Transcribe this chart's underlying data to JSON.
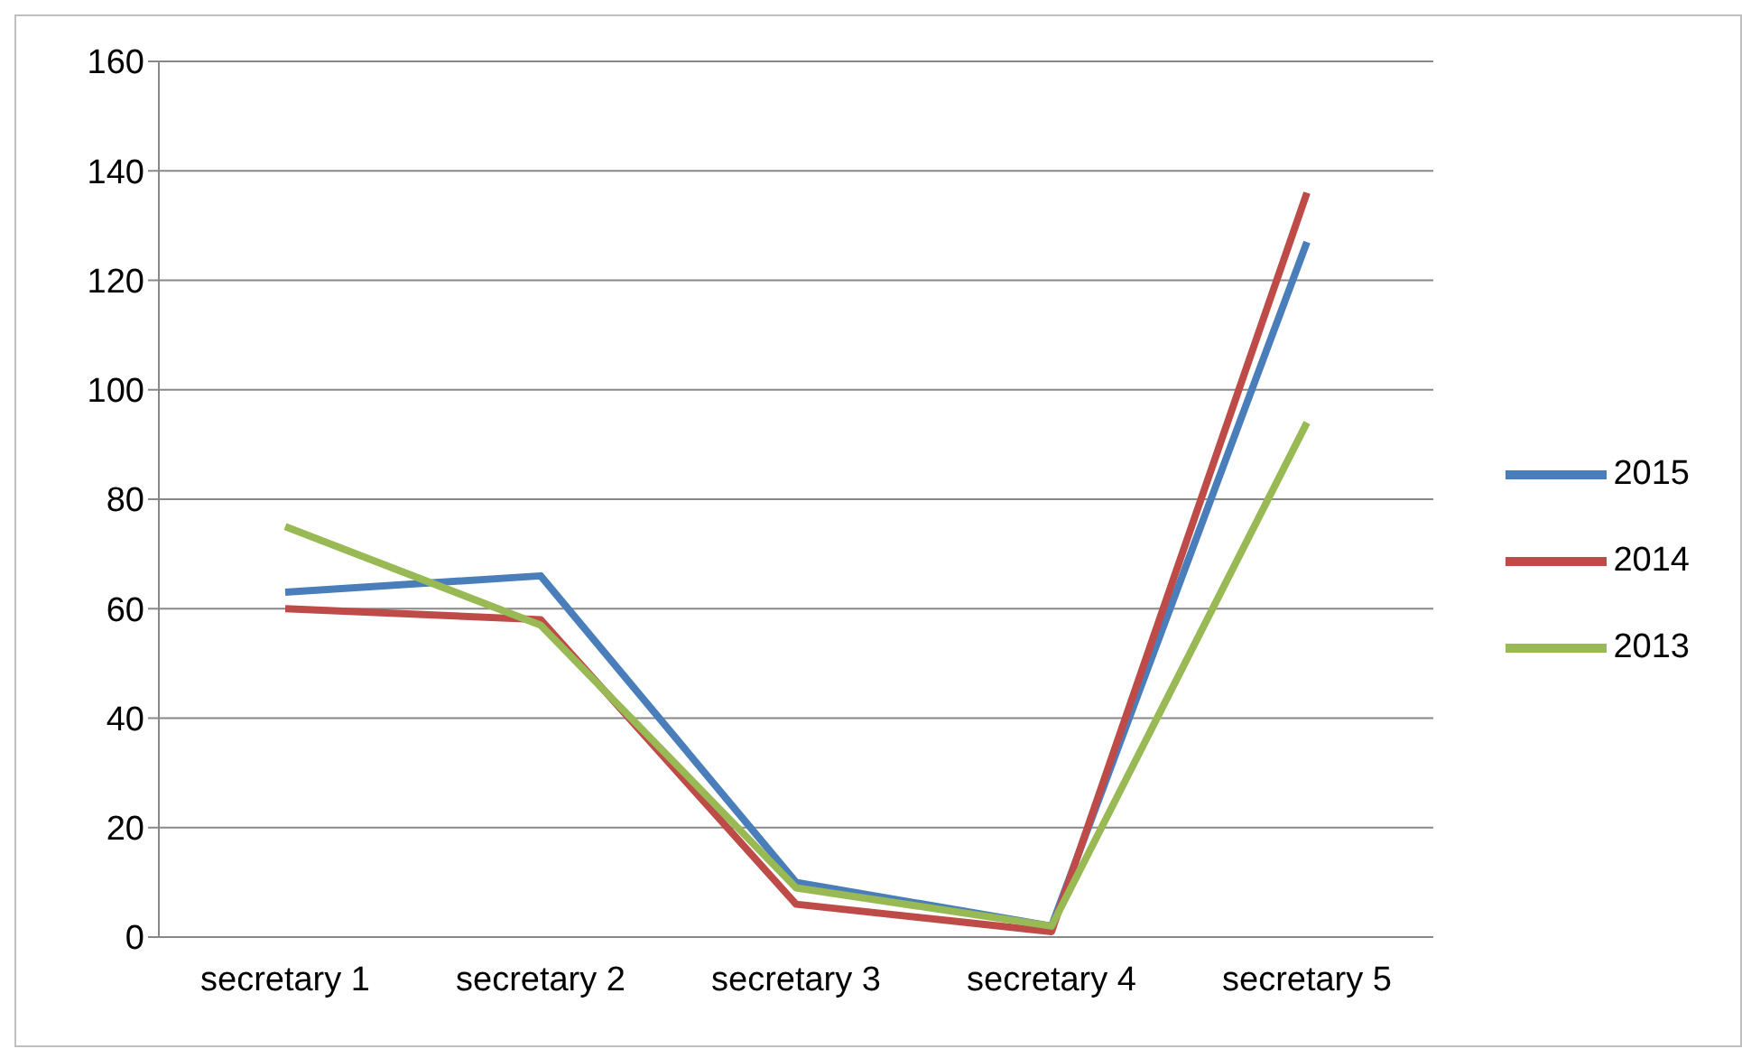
{
  "chart_data": {
    "type": "line",
    "categories": [
      "secretary 1",
      "secretary 2",
      "secretary 3",
      "secretary 4",
      "secretary 5"
    ],
    "series": [
      {
        "name": "2015",
        "color": "#4a7ebb",
        "values": [
          63,
          66,
          10,
          2,
          127
        ]
      },
      {
        "name": "2014",
        "color": "#be4b48",
        "values": [
          60,
          58,
          6,
          1,
          136
        ]
      },
      {
        "name": "2013",
        "color": "#98b954",
        "values": [
          75,
          57,
          9,
          2,
          94
        ]
      }
    ],
    "ylim": [
      0,
      160
    ],
    "yticks": [
      0,
      20,
      40,
      60,
      80,
      100,
      120,
      140,
      160
    ],
    "grid": "y",
    "legend": "right",
    "marker": "none",
    "line_style": "solid"
  }
}
